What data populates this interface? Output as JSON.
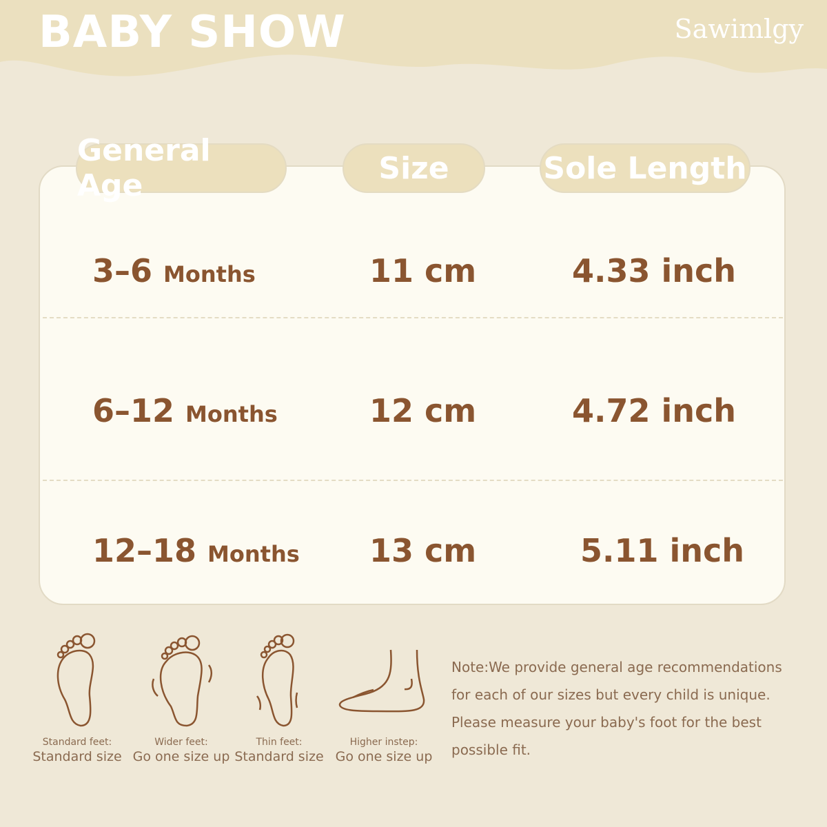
{
  "header": {
    "title": "BABY SHOW",
    "brand": "Sawimlgy"
  },
  "colors": {
    "background": "#efe8d7",
    "header_band": "#ebe0bf",
    "card": "#fdfbf2",
    "text_brown": "#8a5530",
    "pill": "#ece0bd"
  },
  "table": {
    "columns": [
      "General Age",
      "Size",
      "Sole Length"
    ],
    "rows": [
      {
        "age": "3–6",
        "age_unit": "Months",
        "size": "11 cm",
        "sole": "4.33 inch"
      },
      {
        "age": "6–12",
        "age_unit": "Months",
        "size": "12 cm",
        "sole": "4.72 inch"
      },
      {
        "age": "12–18",
        "age_unit": "Months",
        "size": "13 cm",
        "sole": "5.11 inch"
      }
    ]
  },
  "feet": [
    {
      "icon": "standard-foot-icon",
      "label": "Standard feet:",
      "advice": "Standard size"
    },
    {
      "icon": "wide-foot-icon",
      "label": "Wider feet:",
      "advice": "Go one size up"
    },
    {
      "icon": "thin-foot-icon",
      "label": "Thin feet:",
      "advice": "Standard size"
    },
    {
      "icon": "high-instep-icon",
      "label": "Higher instep:",
      "advice": "Go one size up"
    }
  ],
  "note": "Note:We provide general age recommendations for each of our sizes but every child is unique. Please measure your baby's foot for the best possible fit."
}
